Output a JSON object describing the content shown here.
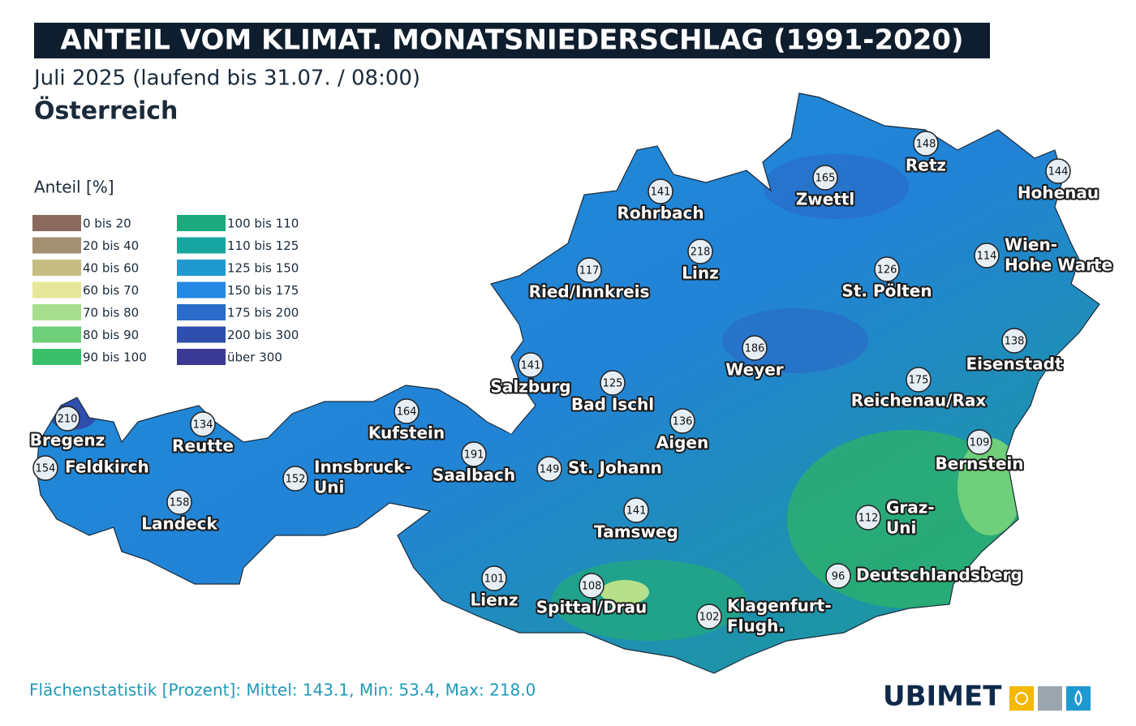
{
  "header": {
    "title": "ANTEIL VOM KLIMAT. MONATSNIEDERSCHLAG (1991-2020)",
    "subtitle": "Juli 2025 (laufend bis 31.07. / 08:00)",
    "region": "Österreich"
  },
  "legend": {
    "title": "Anteil [%]",
    "items": [
      {
        "label": "0 bis 20",
        "color": "#8a6a5e"
      },
      {
        "label": "20 bis 40",
        "color": "#a39072"
      },
      {
        "label": "40 bis 60",
        "color": "#c6bd82"
      },
      {
        "label": "60 bis 70",
        "color": "#e6e69a"
      },
      {
        "label": "70 bis 80",
        "color": "#a8df8f"
      },
      {
        "label": "80 bis 90",
        "color": "#6fcf7a"
      },
      {
        "label": "90 bis 100",
        "color": "#3cbf6a"
      },
      {
        "label": "100 bis 110",
        "color": "#1aaa7c"
      },
      {
        "label": "110 bis 125",
        "color": "#18a6a0"
      },
      {
        "label": "125 bis 150",
        "color": "#1f9ad0"
      },
      {
        "label": "150 bis 175",
        "color": "#2388e2"
      },
      {
        "label": "175 bis 200",
        "color": "#2a6cc8"
      },
      {
        "label": "200 bis 300",
        "color": "#2f4fae"
      },
      {
        "label": "über 300",
        "color": "#3a3a96"
      }
    ]
  },
  "stations": [
    {
      "value": 148,
      "name": [
        "Retz"
      ]
    },
    {
      "value": 144,
      "name": [
        "Hohenau"
      ]
    },
    {
      "value": 165,
      "name": [
        "Zwettl"
      ]
    },
    {
      "value": 141,
      "name": [
        "Rohrbach"
      ]
    },
    {
      "value": 218,
      "name": [
        "Linz"
      ]
    },
    {
      "value": 117,
      "name": [
        "Ried/Innkreis"
      ]
    },
    {
      "value": 126,
      "name": [
        "St. Pölten"
      ]
    },
    {
      "value": 114,
      "name": [
        "Wien-",
        "Hohe Warte"
      ]
    },
    {
      "value": 138,
      "name": [
        "Eisenstadt"
      ]
    },
    {
      "value": 186,
      "name": [
        "Weyer"
      ]
    },
    {
      "value": 141,
      "name": [
        "Salzburg"
      ]
    },
    {
      "value": 125,
      "name": [
        "Bad Ischl"
      ]
    },
    {
      "value": 175,
      "name": [
        "Reichenau/Rax"
      ]
    },
    {
      "value": 210,
      "name": [
        "Bregenz"
      ]
    },
    {
      "value": 134,
      "name": [
        "Reutte"
      ]
    },
    {
      "value": 164,
      "name": [
        "Kufstein"
      ]
    },
    {
      "value": 136,
      "name": [
        "Aigen"
      ]
    },
    {
      "value": 109,
      "name": [
        "Bernstein"
      ]
    },
    {
      "value": 191,
      "name": [
        "Saalbach"
      ]
    },
    {
      "value": 154,
      "name": [
        "Feldkirch"
      ]
    },
    {
      "value": 152,
      "name": [
        "Innsbruck-",
        "Uni"
      ]
    },
    {
      "value": 149,
      "name": [
        "St. Johann"
      ]
    },
    {
      "value": 158,
      "name": [
        "Landeck"
      ]
    },
    {
      "value": 141,
      "name": [
        "Tamsweg"
      ]
    },
    {
      "value": 112,
      "name": [
        "Graz-",
        "Uni"
      ]
    },
    {
      "value": 96,
      "name": [
        "Deutschlandsberg"
      ]
    },
    {
      "value": 101,
      "name": [
        "Lienz"
      ]
    },
    {
      "value": 108,
      "name": [
        "Spittal/Drau"
      ]
    },
    {
      "value": 102,
      "name": [
        "Klagenfurt-",
        "Flugh."
      ]
    }
  ],
  "footer": {
    "statistics": "Flächenstatistik [Prozent]: Mittel: 143.1, Min: 53.4, Max: 218.0",
    "logo": "UBIMET"
  }
}
